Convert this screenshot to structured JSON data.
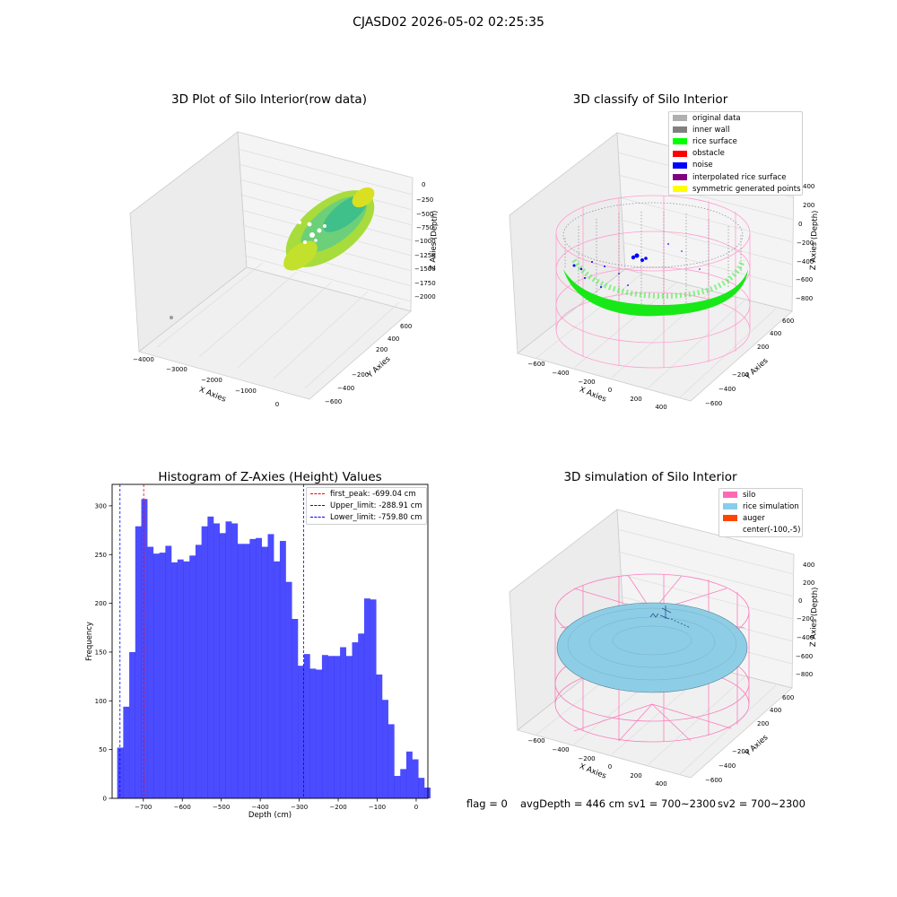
{
  "figure": {
    "suptitle": "CJASD02 2026-05-02 02:25:35",
    "status": {
      "flag": "flag = 0",
      "avg_depth": "avgDepth = 446 cm",
      "sv1": "sv1 = 700~2300",
      "sv2": "sv2 = 700~2300"
    }
  },
  "panels": {
    "raw": {
      "title": "3D Plot of Silo Interior(row data)",
      "xlabel": "X Axies",
      "ylabel": "Y Axies",
      "zlabel": "Z Axies (Depth)",
      "xticks": [
        "−4000",
        "−3000",
        "−2000",
        "−1000",
        "0"
      ],
      "yticks": [
        "600",
        "400",
        "200",
        "−200",
        "−400",
        "−600"
      ],
      "zticks": [
        "0",
        "−250",
        "−500",
        "−750",
        "−1000",
        "−1250",
        "−1500",
        "−1750",
        "−2000"
      ]
    },
    "classify": {
      "title": "3D classify of Silo Interior",
      "xlabel": "X Axies",
      "ylabel": "Y Axies",
      "zlabel": "Z Axies (Depth)",
      "xticks": [
        "−600",
        "−400",
        "−200",
        "0",
        "200",
        "400"
      ],
      "yticks": [
        "600",
        "400",
        "200",
        "−200",
        "−400",
        "−600"
      ],
      "zticks": [
        "400",
        "200",
        "0",
        "−200",
        "−400",
        "−600",
        "−800"
      ],
      "legend": [
        {
          "label": "original data",
          "color": "#b0b0b0"
        },
        {
          "label": "inner wall",
          "color": "#808080"
        },
        {
          "label": "rice surface",
          "color": "#00ff00"
        },
        {
          "label": "obstacle",
          "color": "#ff0000"
        },
        {
          "label": "noise",
          "color": "#0000ff"
        },
        {
          "label": "interpolated rice surface",
          "color": "#800080"
        },
        {
          "label": "symmetric generated points",
          "color": "#ffff00"
        }
      ]
    },
    "simulation": {
      "title": "3D simulation of Silo Interior",
      "xlabel": "X Axies",
      "ylabel": "Y Axies",
      "zlabel": "Z Axies (Depth)",
      "xticks": [
        "−600",
        "−400",
        "−200",
        "0",
        "200",
        "400"
      ],
      "yticks": [
        "600",
        "400",
        "200",
        "−200",
        "−400",
        "−600"
      ],
      "zticks": [
        "400",
        "200",
        "0",
        "−200",
        "−400",
        "−600",
        "−800"
      ],
      "legend": [
        {
          "label": "silo",
          "color": "#ff69b4"
        },
        {
          "label": "rice simulation",
          "color": "#87ceeb"
        },
        {
          "label": "auger",
          "color": "#ff4500"
        },
        {
          "label": "center(-100,-5)",
          "color": ""
        }
      ]
    }
  },
  "chart_data": {
    "type": "bar",
    "title": "Histogram of Z-Axies (Height) Values",
    "xlabel": "Depth (cm)",
    "ylabel": "Frequency",
    "xlim": [
      -780,
      30
    ],
    "ylim": [
      0,
      322
    ],
    "bar_color": "#0000ff",
    "xticks": [
      -700,
      -600,
      -500,
      -400,
      -300,
      -200,
      -100,
      0
    ],
    "yticks": [
      0,
      50,
      100,
      150,
      200,
      250,
      300
    ],
    "bin_start": -767,
    "bin_width": 15.45,
    "values": [
      52,
      94,
      150,
      279,
      307,
      258,
      251,
      252,
      259,
      242,
      245,
      243,
      249,
      260,
      279,
      289,
      282,
      272,
      284,
      282,
      261,
      261,
      266,
      267,
      258,
      271,
      243,
      264,
      222,
      184,
      136,
      148,
      133,
      132,
      147,
      146,
      146,
      155,
      146,
      160,
      169,
      205,
      204,
      127,
      101,
      76,
      23,
      30,
      48,
      40,
      21,
      11
    ],
    "vlines": [
      {
        "label": "first_peak: -699.04 cm",
        "x": -699.04,
        "color": "#ff0000"
      },
      {
        "label": "Upper_limit: -288.91 cm",
        "x": -288.91,
        "color": "#0000ff"
      },
      {
        "label": "Lower_limit: -759.80 cm",
        "x": -759.8,
        "color": "#0000ff"
      }
    ]
  }
}
